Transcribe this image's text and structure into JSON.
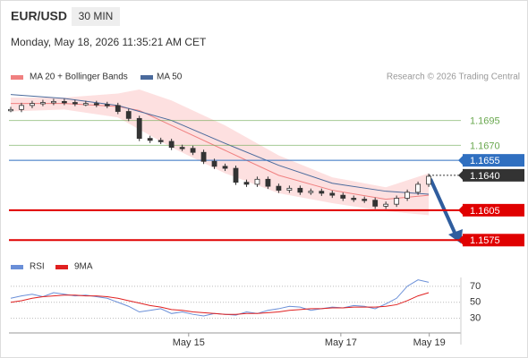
{
  "chart_data": {
    "type": "candlestick",
    "title": "EUR/USD",
    "timeframe": "30 MIN",
    "subtitle": "Monday, May 18, 2026 11:35:21 AM CET",
    "credit": "Research © 2026 Trading Central",
    "candle_color": "#333333",
    "x": [
      0,
      1,
      2,
      3,
      4,
      5,
      6,
      7,
      8,
      9,
      10,
      11,
      12,
      13,
      14,
      15,
      16,
      17,
      18,
      19,
      20,
      21,
      22,
      23,
      24,
      25,
      26,
      27,
      28,
      29,
      30,
      31,
      32,
      33,
      34,
      35,
      36,
      37,
      38,
      39
    ],
    "close": [
      1.1706,
      1.171,
      1.1712,
      1.1713,
      1.1714,
      1.1713,
      1.1712,
      1.1712,
      1.1711,
      1.171,
      1.1704,
      1.1697,
      1.1677,
      1.1675,
      1.1674,
      1.1668,
      1.1667,
      1.1663,
      1.1654,
      1.1649,
      1.1647,
      1.1633,
      1.1631,
      1.1636,
      1.1629,
      1.1625,
      1.1627,
      1.1623,
      1.1624,
      1.1622,
      1.162,
      1.1617,
      1.1616,
      1.1615,
      1.1609,
      1.1611,
      1.1617,
      1.1623,
      1.1631,
      1.1639
    ],
    "xlim": [
      0,
      42
    ],
    "xticks": [
      {
        "value": 16.6,
        "label": "May 15"
      },
      {
        "value": 30.8,
        "label": "May 17"
      },
      {
        "value": 39.05,
        "label": "May 19"
      }
    ],
    "ylim": [
      1.156,
      1.1735
    ],
    "bands": {
      "name": "MA 20 + Bollinger Bands",
      "color": "#f08080",
      "fill": "#fde0e0",
      "x": [
        0,
        5,
        10,
        12,
        15,
        20,
        25,
        30,
        35,
        39
      ],
      "values": [
        1.1712,
        1.1712,
        1.1709,
        1.1705,
        1.169,
        1.1665,
        1.164,
        1.1625,
        1.1616,
        1.162
      ],
      "upper": [
        1.1718,
        1.1718,
        1.1722,
        1.1726,
        1.1715,
        1.169,
        1.166,
        1.1638,
        1.1628,
        1.1642
      ],
      "lower": [
        1.1704,
        1.1706,
        1.1698,
        1.1686,
        1.1668,
        1.1642,
        1.1622,
        1.1612,
        1.1604,
        1.16
      ]
    },
    "series": [
      {
        "name": "MA 50",
        "color": "#4a6a9c",
        "x": [
          0,
          5,
          10,
          15,
          20,
          25,
          30,
          35,
          39
        ],
        "values": [
          1.1721,
          1.1717,
          1.171,
          1.1695,
          1.1672,
          1.165,
          1.1632,
          1.1624,
          1.1621
        ]
      }
    ],
    "levels": [
      {
        "value": 1.1695,
        "label": "1.1695",
        "color": "#6aa84f",
        "boxed": false,
        "dotted": false
      },
      {
        "value": 1.167,
        "label": "1.1670",
        "color": "#6aa84f",
        "boxed": false,
        "dotted": false
      },
      {
        "value": 1.1655,
        "label": "1.1655",
        "color": "#2f6fc0",
        "boxed": true,
        "dotted": false
      },
      {
        "value": 1.164,
        "label": "1.1640",
        "color": "#333333",
        "boxed": true,
        "dotted": true
      },
      {
        "value": 1.1605,
        "label": "1.1605",
        "color": "#e00000",
        "boxed": true,
        "dotted": false
      },
      {
        "value": 1.1575,
        "label": "1.1575",
        "color": "#e00000",
        "boxed": true,
        "dotted": false
      }
    ],
    "rsi": {
      "ylim": [
        14,
        81
      ],
      "yticks": [
        70,
        50,
        30
      ],
      "series": [
        {
          "name": "RSI",
          "color": "#6a8fd8",
          "values": [
            55,
            58,
            60,
            57,
            62,
            60,
            58,
            59,
            57,
            55,
            50,
            45,
            38,
            40,
            42,
            36,
            38,
            35,
            33,
            36,
            35,
            34,
            38,
            36,
            40,
            42,
            45,
            44,
            40,
            42,
            44,
            43,
            46,
            45,
            42,
            48,
            55,
            70,
            78,
            75
          ]
        },
        {
          "name": "9MA",
          "color": "#e02020",
          "values": [
            50,
            52,
            55,
            57,
            58,
            59,
            59,
            58,
            58,
            57,
            55,
            52,
            49,
            46,
            44,
            41,
            40,
            38,
            37,
            36,
            35,
            35,
            36,
            36,
            37,
            38,
            40,
            41,
            42,
            42,
            43,
            43,
            44,
            44,
            44,
            45,
            47,
            52,
            58,
            62
          ]
        }
      ]
    }
  }
}
